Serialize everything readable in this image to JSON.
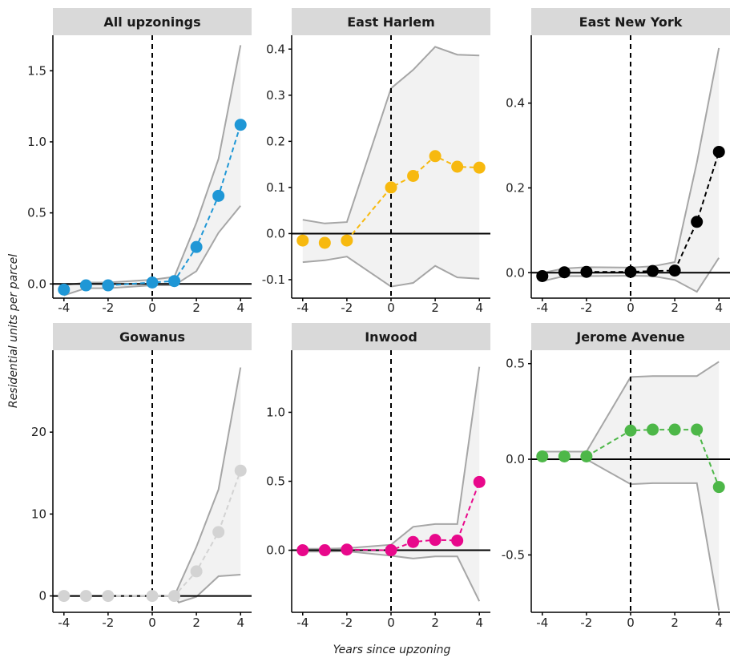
{
  "chart_data": {
    "type": "line",
    "xlabel": "Years since upzoning",
    "ylabel": "Residential units per parcel",
    "x_ticks": [
      -4,
      -2,
      0,
      2,
      4
    ],
    "panels": [
      {
        "title": "All upzonings",
        "color": "#1f97d6",
        "x": [
          -4,
          -3,
          -2,
          0,
          1,
          2,
          3,
          4
        ],
        "y": [
          -0.04,
          -0.01,
          -0.01,
          0.01,
          0.02,
          0.26,
          0.62,
          1.12
        ],
        "ci_x": [
          -4,
          -3,
          -2,
          0,
          1,
          2,
          3,
          4
        ],
        "ci_upper": [
          -0.01,
          0.01,
          0.01,
          0.03,
          0.05,
          0.43,
          0.88,
          1.68
        ],
        "ci_lower": [
          -0.08,
          -0.03,
          -0.03,
          -0.01,
          -0.01,
          0.09,
          0.36,
          0.55
        ],
        "ylim": [
          -0.1,
          1.75
        ],
        "yticks": [
          0.0,
          0.5,
          1.0,
          1.5
        ],
        "ytick_labels": [
          "0.0",
          "0.5",
          "1.0",
          "1.5"
        ]
      },
      {
        "title": "East Harlem",
        "color": "#f7b90f",
        "x": [
          -4,
          -3,
          -2,
          0,
          1,
          2,
          3,
          4
        ],
        "y": [
          -0.015,
          -0.02,
          -0.015,
          0.1,
          0.125,
          0.168,
          0.145,
          0.143
        ],
        "ci_x": [
          -4,
          -3,
          -2,
          0,
          1,
          2,
          3,
          4
        ],
        "ci_upper": [
          0.03,
          0.022,
          0.025,
          0.315,
          0.355,
          0.405,
          0.388,
          0.386
        ],
        "ci_lower": [
          -0.062,
          -0.058,
          -0.05,
          -0.115,
          -0.107,
          -0.07,
          -0.095,
          -0.098
        ],
        "ylim": [
          -0.14,
          0.43
        ],
        "yticks": [
          -0.1,
          0.0,
          0.1,
          0.2,
          0.3,
          0.4
        ],
        "ytick_labels": [
          "-0.1",
          "0.0",
          "0.1",
          "0.2",
          "0.3",
          "0.4"
        ]
      },
      {
        "title": "East New York",
        "color": "#000000",
        "x": [
          -4,
          -3,
          -2,
          0,
          1,
          2,
          3,
          4
        ],
        "y": [
          -0.008,
          0.001,
          0.002,
          0.002,
          0.004,
          0.005,
          0.12,
          0.285
        ],
        "ci_x": [
          -4,
          -3,
          -2,
          0,
          1,
          2,
          3,
          4
        ],
        "ci_upper": [
          0.0,
          0.01,
          0.013,
          0.012,
          0.015,
          0.025,
          0.26,
          0.53
        ],
        "ci_lower": [
          -0.02,
          -0.008,
          -0.008,
          -0.007,
          -0.008,
          -0.017,
          -0.045,
          0.035
        ],
        "ylim": [
          -0.06,
          0.56
        ],
        "yticks": [
          0.0,
          0.2,
          0.4
        ],
        "ytick_labels": [
          "0.0",
          "0.2",
          "0.4"
        ]
      },
      {
        "title": "Gowanus",
        "color": "#d3d3d3",
        "x": [
          -4,
          -3,
          -2,
          0,
          1,
          2,
          3,
          4
        ],
        "y": [
          0.0,
          0.0,
          0.0,
          0.0,
          0.0,
          3.0,
          7.8,
          15.3
        ],
        "ci_x": [
          -4,
          -3,
          -2,
          0,
          1,
          1.2,
          2,
          3,
          4
        ],
        "ci_upper": [
          0.0,
          0.0,
          0.0,
          0.0,
          0.0,
          1.2,
          6.0,
          13.0,
          27.9
        ],
        "ci_lower": [
          0.0,
          0.0,
          0.0,
          0.0,
          0.0,
          -0.8,
          -0.1,
          2.4,
          2.6
        ],
        "ylim": [
          -2,
          30
        ],
        "yticks": [
          0,
          10,
          20
        ],
        "ytick_labels": [
          "0",
          "10",
          "20"
        ]
      },
      {
        "title": "Inwood",
        "color": "#e8088b",
        "x": [
          -4,
          -3,
          -2,
          0,
          1,
          2,
          3,
          4
        ],
        "y": [
          0.0,
          0.0,
          0.005,
          0.0,
          0.06,
          0.075,
          0.07,
          0.495
        ],
        "ci_x": [
          -4,
          -3,
          -2,
          0,
          1,
          2,
          3,
          4
        ],
        "ci_upper": [
          0.01,
          0.01,
          0.015,
          0.04,
          0.17,
          0.19,
          0.19,
          1.33
        ],
        "ci_lower": [
          -0.01,
          -0.01,
          -0.008,
          -0.04,
          -0.06,
          -0.045,
          -0.045,
          -0.37
        ],
        "ylim": [
          -0.45,
          1.45
        ],
        "yticks": [
          0.0,
          0.5,
          1.0
        ],
        "ytick_labels": [
          "0.0",
          "0.5",
          "1.0"
        ]
      },
      {
        "title": "Jerome Avenue",
        "color": "#4db748",
        "x": [
          -4,
          -3,
          -2,
          0,
          1,
          2,
          3,
          4
        ],
        "y": [
          0.015,
          0.015,
          0.015,
          0.15,
          0.155,
          0.155,
          0.155,
          -0.145
        ],
        "ci_x": [
          -4,
          -3,
          -2,
          0,
          1,
          2,
          3,
          4
        ],
        "ci_upper": [
          0.04,
          0.04,
          0.04,
          0.43,
          0.435,
          0.435,
          0.435,
          0.51
        ],
        "ci_lower": [
          0.0,
          0.0,
          0.0,
          -0.13,
          -0.125,
          -0.125,
          -0.125,
          -0.79
        ],
        "ylim": [
          -0.8,
          0.57
        ],
        "yticks": [
          -0.5,
          0.0,
          0.5
        ],
        "ytick_labels": [
          "-0.5",
          "0.0",
          "0.5"
        ]
      }
    ]
  },
  "style": {
    "strip_bg": "#d9d9d9",
    "band_fill": "#f2f2f2",
    "band_line": "#a6a6a6",
    "axis_color": "#000000"
  }
}
